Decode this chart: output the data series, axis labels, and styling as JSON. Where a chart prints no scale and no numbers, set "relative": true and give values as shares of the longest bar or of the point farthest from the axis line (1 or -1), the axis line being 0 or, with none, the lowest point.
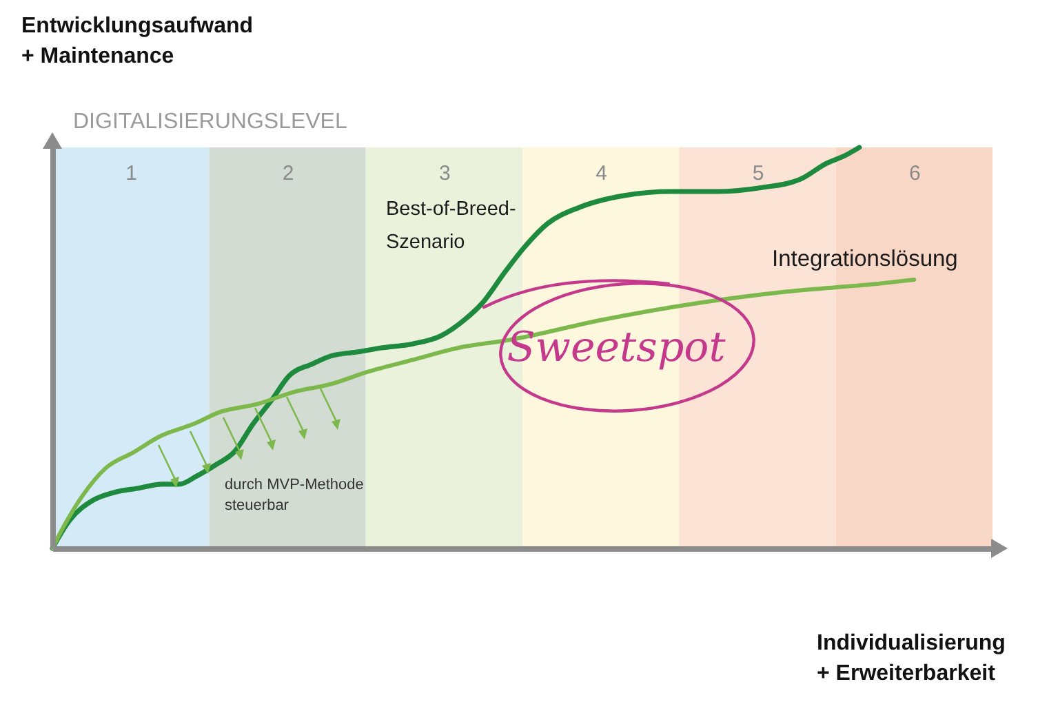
{
  "chart_data": {
    "type": "line",
    "relative": true,
    "ylabel": "Entwicklungsaufwand + Maintenance",
    "xlabel": "Individualisierung + Erweiterbarkeit",
    "xlim": [
      0.5,
      6.5
    ],
    "xticks": [
      1,
      2,
      3,
      4,
      5,
      6
    ],
    "tick_labels": "x",
    "series": [
      {
        "name": "Best-of-Breed-Szenario",
        "color": "#1e8a3e",
        "x": [
          0.5,
          0.61,
          0.76,
          0.9,
          1.05,
          1.2,
          1.31,
          1.42,
          1.55,
          1.66,
          1.78,
          1.9,
          2.01,
          2.16,
          2.28,
          2.45,
          2.6,
          2.8,
          2.98,
          3.13,
          3.24,
          3.39,
          3.51,
          3.66,
          3.86,
          4.15,
          4.45,
          4.74,
          5.03,
          5.27,
          5.44,
          5.56,
          5.65
        ],
        "values": [
          0,
          0.07,
          0.12,
          0.14,
          0.15,
          0.16,
          0.16,
          0.18,
          0.21,
          0.24,
          0.31,
          0.37,
          0.43,
          0.46,
          0.48,
          0.49,
          0.5,
          0.51,
          0.53,
          0.57,
          0.61,
          0.69,
          0.75,
          0.81,
          0.85,
          0.88,
          0.89,
          0.89,
          0.9,
          0.92,
          0.96,
          0.98,
          1
        ]
      },
      {
        "name": "Integrationslösung",
        "color": "#7cb84b",
        "x": [
          0.5,
          0.58,
          0.69,
          0.84,
          1.02,
          1.19,
          1.4,
          1.57,
          1.81,
          2.04,
          2.28,
          2.51,
          2.8,
          3.09,
          3.42,
          4.01,
          4.59,
          5.18,
          5.77,
          6
        ],
        "values": [
          0,
          0.06,
          0.13,
          0.2,
          0.24,
          0.28,
          0.31,
          0.34,
          0.36,
          0.39,
          0.41,
          0.44,
          0.47,
          0.5,
          0.52,
          0.57,
          0.61,
          0.64,
          0.66,
          0.67
        ]
      }
    ],
    "bands": [
      {
        "axis": "x",
        "from": 0.5,
        "to": 1.5,
        "color": "#d4eaf7"
      },
      {
        "axis": "x",
        "from": 1.5,
        "to": 2.5,
        "color": "#d3dcd3"
      },
      {
        "axis": "x",
        "from": 2.5,
        "to": 3.5,
        "color": "#ebf2dc"
      },
      {
        "axis": "x",
        "from": 3.5,
        "to": 4.5,
        "color": "#fdf7dd"
      },
      {
        "axis": "x",
        "from": 4.5,
        "to": 5.5,
        "color": "#fbe3d5"
      },
      {
        "axis": "x",
        "from": 5.5,
        "to": 6.5,
        "color": "#f9d7c7"
      }
    ],
    "annotations": [
      "DIGITALISIERUNGSLEVEL",
      "durch MVP-Methode steuerbar",
      "Sweetspot"
    ]
  }
}
